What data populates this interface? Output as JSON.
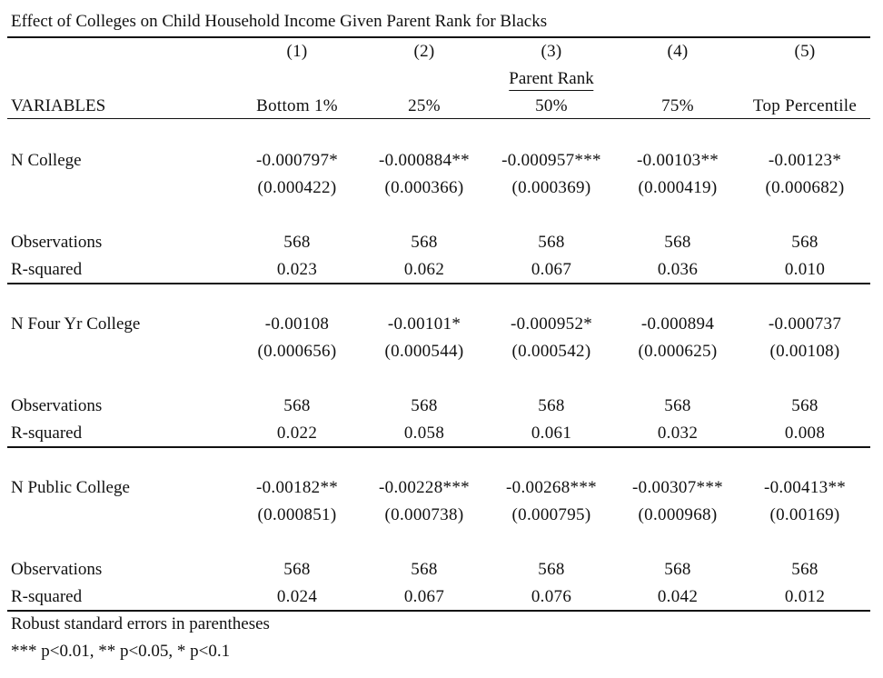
{
  "title": "Effect of Colleges on Child Household Income Given Parent Rank for Blacks",
  "column_numbers": [
    "(1)",
    "(2)",
    "(3)",
    "(4)",
    "(5)"
  ],
  "spanner_label": "Parent Rank",
  "variables_header": "VARIABLES",
  "column_labels": [
    "Bottom 1%",
    "25%",
    "50%",
    "75%",
    "Top Percentile"
  ],
  "panels": [
    {
      "variable": "N College",
      "coefficients": [
        "-0.000797*",
        "-0.000884**",
        "-0.000957***",
        "-0.00103**",
        "-0.00123*"
      ],
      "std_errors": [
        "(0.000422)",
        "(0.000366)",
        "(0.000369)",
        "(0.000419)",
        "(0.000682)"
      ],
      "observations_label": "Observations",
      "observations": [
        "568",
        "568",
        "568",
        "568",
        "568"
      ],
      "r2_label": "R-squared",
      "r_squared": [
        "0.023",
        "0.062",
        "0.067",
        "0.036",
        "0.010"
      ]
    },
    {
      "variable": "N Four Yr College",
      "coefficients": [
        "-0.00108",
        "-0.00101*",
        "-0.000952*",
        "-0.000894",
        "-0.000737"
      ],
      "std_errors": [
        "(0.000656)",
        "(0.000544)",
        "(0.000542)",
        "(0.000625)",
        "(0.00108)"
      ],
      "observations_label": "Observations",
      "observations": [
        "568",
        "568",
        "568",
        "568",
        "568"
      ],
      "r2_label": "R-squared",
      "r_squared": [
        "0.022",
        "0.058",
        "0.061",
        "0.032",
        "0.008"
      ]
    },
    {
      "variable": "N Public College",
      "coefficients": [
        "-0.00182**",
        "-0.00228***",
        "-0.00268***",
        "-0.00307***",
        "-0.00413**"
      ],
      "std_errors": [
        "(0.000851)",
        "(0.000738)",
        "(0.000795)",
        "(0.000968)",
        "(0.00169)"
      ],
      "observations_label": "Observations",
      "observations": [
        "568",
        "568",
        "568",
        "568",
        "568"
      ],
      "r2_label": "R-squared",
      "r_squared": [
        "0.024",
        "0.067",
        "0.076",
        "0.042",
        "0.012"
      ]
    }
  ],
  "notes": [
    "Robust standard errors in parentheses",
    "*** p<0.01, ** p<0.05, * p<0.1"
  ]
}
